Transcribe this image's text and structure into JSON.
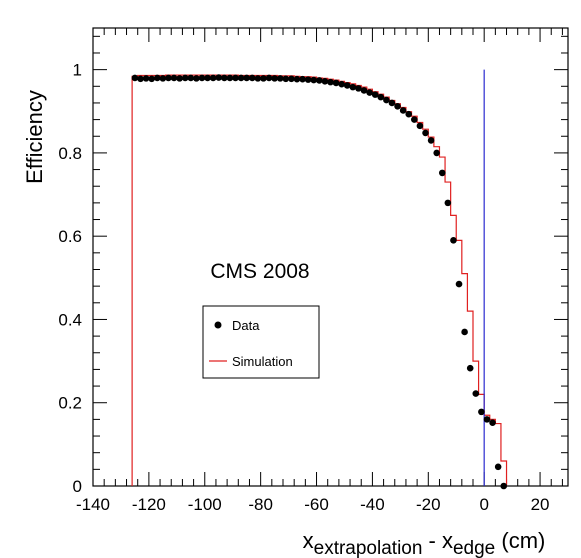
{
  "chart_data": {
    "type": "scatter",
    "title": "",
    "annotation": "CMS 2008",
    "xlabel": {
      "parts": [
        {
          "text": "x",
          "style": "normal"
        },
        {
          "text": "extrapolation",
          "style": "sub"
        },
        {
          "text": " - x",
          "style": "normal"
        },
        {
          "text": "edge",
          "style": "sub"
        },
        {
          "text": " (cm)",
          "style": "normal"
        }
      ]
    },
    "ylabel": "Efficiency",
    "xlim": [
      -140,
      30
    ],
    "ylim": [
      0,
      1.1
    ],
    "xticks": [
      -140,
      -120,
      -100,
      -80,
      -60,
      -40,
      -20,
      0,
      20
    ],
    "xtick_labels": [
      "-140",
      "-120",
      "-100",
      "-80",
      "-60",
      "-40",
      "-20",
      "0",
      "20"
    ],
    "yticks": [
      0,
      0.2,
      0.4,
      0.6,
      0.8,
      1
    ],
    "ytick_labels": [
      "0",
      "0.2",
      "0.4",
      "0.6",
      "0.8",
      "1"
    ],
    "grid": false,
    "legend": {
      "placement": "center-left",
      "entries": [
        {
          "label": "Data",
          "marker": "dot",
          "color": "#000000"
        },
        {
          "label": "Simulation",
          "marker": "line",
          "color": "#e02020"
        }
      ]
    },
    "reference_line": {
      "x": 0,
      "y_from": 0,
      "y_to": 1.0,
      "color": "#2a2ad0"
    },
    "series": [
      {
        "name": "Data",
        "kind": "points",
        "color": "#000000",
        "x": [
          -125,
          -123,
          -121,
          -119,
          -117,
          -115,
          -113,
          -111,
          -109,
          -107,
          -105,
          -103,
          -101,
          -99,
          -97,
          -95,
          -93,
          -91,
          -89,
          -87,
          -85,
          -83,
          -81,
          -79,
          -77,
          -75,
          -73,
          -71,
          -69,
          -67,
          -65,
          -63,
          -61,
          -59,
          -57,
          -55,
          -53,
          -51,
          -49,
          -47,
          -45,
          -43,
          -41,
          -39,
          -37,
          -35,
          -33,
          -31,
          -29,
          -27,
          -25,
          -23,
          -21,
          -19,
          -17,
          -15,
          -13,
          -11,
          -9,
          -7,
          -5,
          -3,
          -1,
          1,
          3,
          5,
          7
        ],
        "y": [
          0.98,
          0.978,
          0.979,
          0.978,
          0.98,
          0.979,
          0.98,
          0.98,
          0.979,
          0.98,
          0.98,
          0.979,
          0.98,
          0.98,
          0.98,
          0.981,
          0.98,
          0.98,
          0.98,
          0.98,
          0.98,
          0.98,
          0.979,
          0.979,
          0.98,
          0.979,
          0.979,
          0.978,
          0.978,
          0.977,
          0.977,
          0.976,
          0.975,
          0.974,
          0.972,
          0.97,
          0.968,
          0.965,
          0.962,
          0.958,
          0.955,
          0.95,
          0.945,
          0.94,
          0.934,
          0.927,
          0.92,
          0.912,
          0.902,
          0.893,
          0.88,
          0.865,
          0.848,
          0.83,
          0.8,
          0.752,
          0.68,
          0.59,
          0.485,
          0.37,
          0.283,
          0.222,
          0.178,
          0.16,
          0.152,
          0.046,
          0.0
        ]
      },
      {
        "name": "Simulation",
        "kind": "step",
        "color": "#e02020",
        "edges": [
          -126,
          -124,
          -122,
          -120,
          -118,
          -116,
          -114,
          -112,
          -110,
          -108,
          -106,
          -104,
          -102,
          -100,
          -98,
          -96,
          -94,
          -92,
          -90,
          -88,
          -86,
          -84,
          -82,
          -80,
          -78,
          -76,
          -74,
          -72,
          -70,
          -68,
          -66,
          -64,
          -62,
          -60,
          -58,
          -56,
          -54,
          -52,
          -50,
          -48,
          -46,
          -44,
          -42,
          -40,
          -38,
          -36,
          -34,
          -32,
          -30,
          -28,
          -26,
          -24,
          -22,
          -20,
          -18,
          -16,
          -14,
          -12,
          -10,
          -8,
          -6,
          -4,
          -2,
          0,
          2,
          4,
          6,
          8
        ],
        "values": [
          0.984,
          0.986,
          0.986,
          0.986,
          0.986,
          0.986,
          0.987,
          0.987,
          0.987,
          0.987,
          0.987,
          0.987,
          0.987,
          0.987,
          0.987,
          0.987,
          0.987,
          0.987,
          0.987,
          0.986,
          0.986,
          0.986,
          0.986,
          0.986,
          0.986,
          0.986,
          0.985,
          0.985,
          0.985,
          0.984,
          0.983,
          0.983,
          0.982,
          0.98,
          0.979,
          0.977,
          0.975,
          0.972,
          0.969,
          0.966,
          0.962,
          0.958,
          0.953,
          0.947,
          0.941,
          0.934,
          0.926,
          0.918,
          0.909,
          0.899,
          0.888,
          0.873,
          0.857,
          0.838,
          0.815,
          0.79,
          0.73,
          0.65,
          0.59,
          0.51,
          0.42,
          0.3,
          0.22,
          0.17,
          0.16,
          0.15,
          0.06
        ]
      }
    ]
  }
}
